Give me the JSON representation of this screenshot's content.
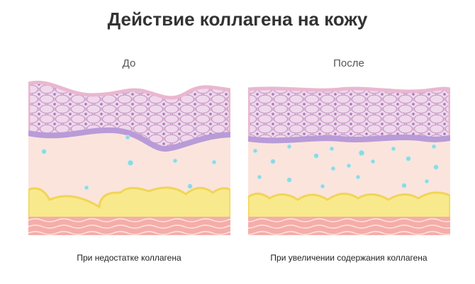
{
  "header": {
    "title": "Действие коллагена на кожу"
  },
  "panels": [
    {
      "label": "До",
      "caption": "При недостатке коллагена"
    },
    {
      "label": "После",
      "caption": "При увеличении содержания коллагена"
    }
  ]
}
